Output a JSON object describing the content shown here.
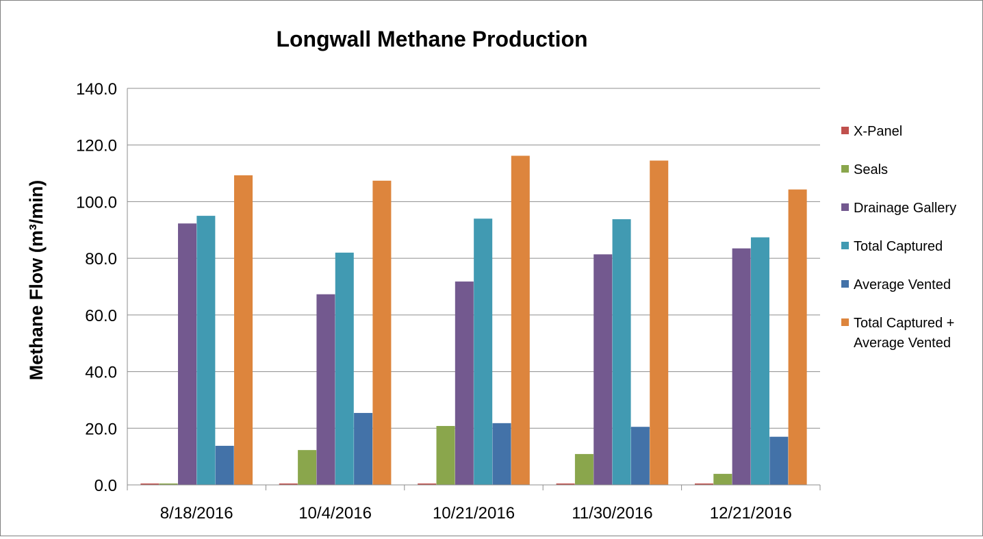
{
  "chart_data": {
    "type": "bar",
    "title": "Longwall Methane Production",
    "ylabel": "Methane Flow (m³/min)",
    "xlabel": "",
    "ylim": [
      0,
      140
    ],
    "yticks": [
      "0.0",
      "20.0",
      "40.0",
      "60.0",
      "80.0",
      "100.0",
      "120.0",
      "140.0"
    ],
    "categories": [
      "8/18/2016",
      "10/4/2016",
      "10/21/2016",
      "11/30/2016",
      "12/21/2016"
    ],
    "grid": true,
    "legend_position": "right",
    "series": [
      {
        "name": "X-Panel",
        "color": "#c0504d",
        "values": [
          0.5,
          0.5,
          0.5,
          0.5,
          0.5
        ]
      },
      {
        "name": "Seals",
        "color": "#8aa64c",
        "values": [
          0.5,
          12.3,
          20.8,
          10.9,
          3.9
        ]
      },
      {
        "name": "Drainage Gallery",
        "color": "#73598f",
        "values": [
          92.3,
          67.3,
          71.8,
          81.4,
          83.5
        ]
      },
      {
        "name": "Total Captured",
        "color": "#419ab2",
        "values": [
          95.0,
          82.0,
          94.0,
          93.8,
          87.4
        ]
      },
      {
        "name": "Average Vented",
        "color": "#4372a8",
        "values": [
          13.8,
          25.4,
          21.8,
          20.5,
          17.0
        ]
      },
      {
        "name": "Total Captured + Average Vented",
        "legend_lines": [
          "Total Captured +",
          "Average Vented"
        ],
        "color": "#dd853d",
        "values": [
          109.3,
          107.4,
          116.2,
          114.5,
          104.3
        ]
      }
    ]
  }
}
